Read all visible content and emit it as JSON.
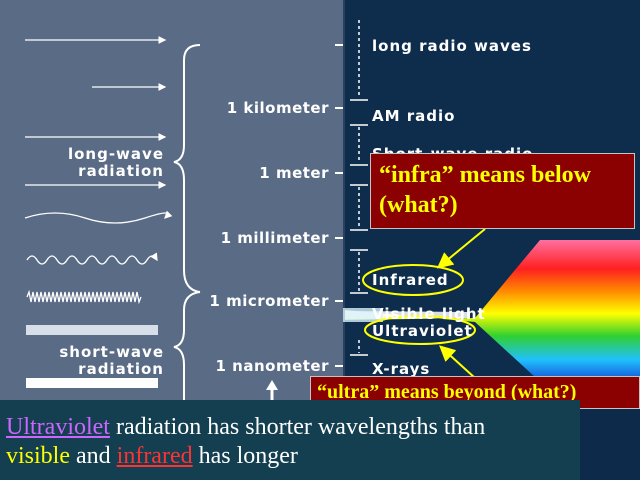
{
  "scale_labels": [
    "1 kilometer",
    "1 meter",
    "1 millimeter",
    "1 micrometer",
    "1 nanometer"
  ],
  "bands": [
    "long radio waves",
    "AM radio",
    "Short-wave radio",
    "Infrared",
    "Visible light",
    "Ultraviolet",
    "X-rays"
  ],
  "groups": {
    "long_wave": [
      "long-wave",
      "radiation"
    ],
    "short_wave": [
      "short-wave",
      "radiation"
    ]
  },
  "callouts": {
    "infra": [
      "“infra” means below",
      "(what?)"
    ],
    "ultra": "“ultra” means beyond (what?)"
  },
  "caption": {
    "uv": "Ultraviolet",
    "part1": " radiation has shorter wavelengths than",
    "visible": "visible",
    "and": " and ",
    "infrared": "infrared",
    "part2": " has longer"
  },
  "colors": {
    "callout_bg": "#8b0000",
    "callout_text": "#ffff00",
    "ellipse": "#ffff00",
    "caption_bg": "#133f50"
  }
}
